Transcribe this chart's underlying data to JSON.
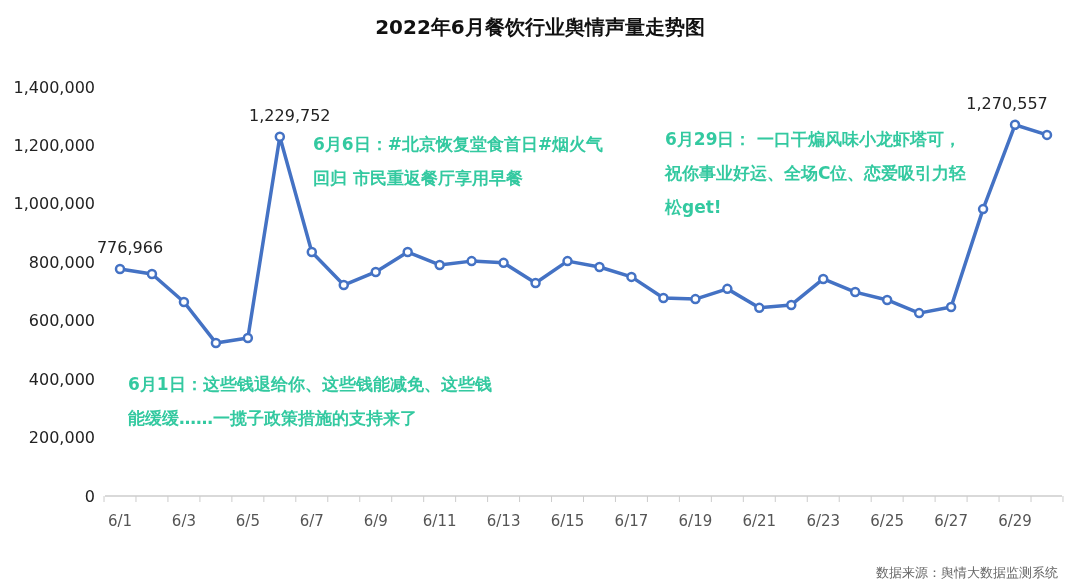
{
  "chart_data": {
    "type": "line",
    "title": "2022年6月餐饮行业舆情声量走势图",
    "categories": [
      "6/1",
      null,
      "6/3",
      null,
      "6/5",
      null,
      "6/7",
      null,
      "6/9",
      null,
      "6/11",
      null,
      "6/13",
      null,
      "6/15",
      null,
      "6/17",
      null,
      "6/19",
      null,
      "6/21",
      null,
      "6/23",
      null,
      "6/25",
      null,
      "6/27",
      null,
      "6/29",
      null
    ],
    "series": [
      {
        "color": "#4472c4",
        "values": [
          776966,
          760000,
          664000,
          524000,
          541000,
          1229752,
          835000,
          722000,
          767000,
          835000,
          791000,
          804000,
          798000,
          729000,
          804000,
          784000,
          750000,
          678000,
          674000,
          709000,
          644000,
          654000,
          743000,
          698000,
          671000,
          626000,
          647000,
          982000,
          1270557,
          1236000
        ],
        "value_labels": [
          "776,966",
          null,
          null,
          null,
          null,
          "1,229,752",
          null,
          null,
          null,
          null,
          null,
          null,
          null,
          null,
          null,
          null,
          null,
          null,
          null,
          null,
          null,
          null,
          null,
          null,
          null,
          null,
          null,
          null,
          "1,270,557",
          null
        ]
      }
    ],
    "ylim": [
      0,
      1400000
    ],
    "yticks": [
      {
        "value": 0,
        "label": "0"
      },
      {
        "value": 200000,
        "label": "200,000"
      },
      {
        "value": 400000,
        "label": "400,000"
      },
      {
        "value": 600000,
        "label": "600,000"
      },
      {
        "value": 800000,
        "label": "800,000"
      },
      {
        "value": 1000000,
        "label": "1,000,000"
      },
      {
        "value": 1200000,
        "label": "1,200,000"
      },
      {
        "value": 1400000,
        "label": "1,400,000"
      }
    ],
    "marker": "circle",
    "line_style": "solid",
    "annotations": [
      "6月1日：这些钱退给你、这些钱能减免、这些钱能缓缓……一揽子政策措施的支持来了",
      "6月6日：#北京恢复堂食首日#烟火气回归 市民重返餐厅享用早餐",
      "6月29日： 一口干煸风味小龙虾塔可，祝你事业好运、全场C位、恋爱吸引力轻松get!",
      "数据来源：舆情大数据监测系统"
    ]
  }
}
